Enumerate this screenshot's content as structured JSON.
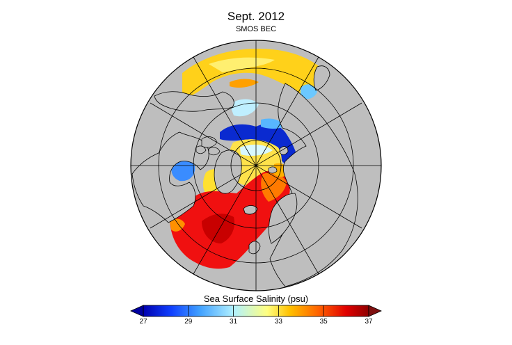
{
  "map": {
    "title": "Sept. 2012",
    "subtitle": "SMOS BEC",
    "projection": "north-polar-stereographic",
    "variable": "sea-surface-salinity"
  },
  "colorbar": {
    "label": "Sea Surface Salinity (psu)",
    "min": 27,
    "max": 37,
    "ticks": [
      "27",
      "29",
      "31",
      "33",
      "35",
      "37"
    ],
    "extend": "both",
    "colors": {
      "low_arrow": "#0000a0",
      "high_arrow": "#7f1010",
      "stops": [
        "#0000b0",
        "#1040ff",
        "#40a0ff",
        "#b0f0ff",
        "#ffff80",
        "#ffc000",
        "#ff6000",
        "#e00000",
        "#900000"
      ]
    }
  },
  "colors": {
    "land": "#bebebe",
    "coast": "#000000",
    "grid": "#000000"
  }
}
